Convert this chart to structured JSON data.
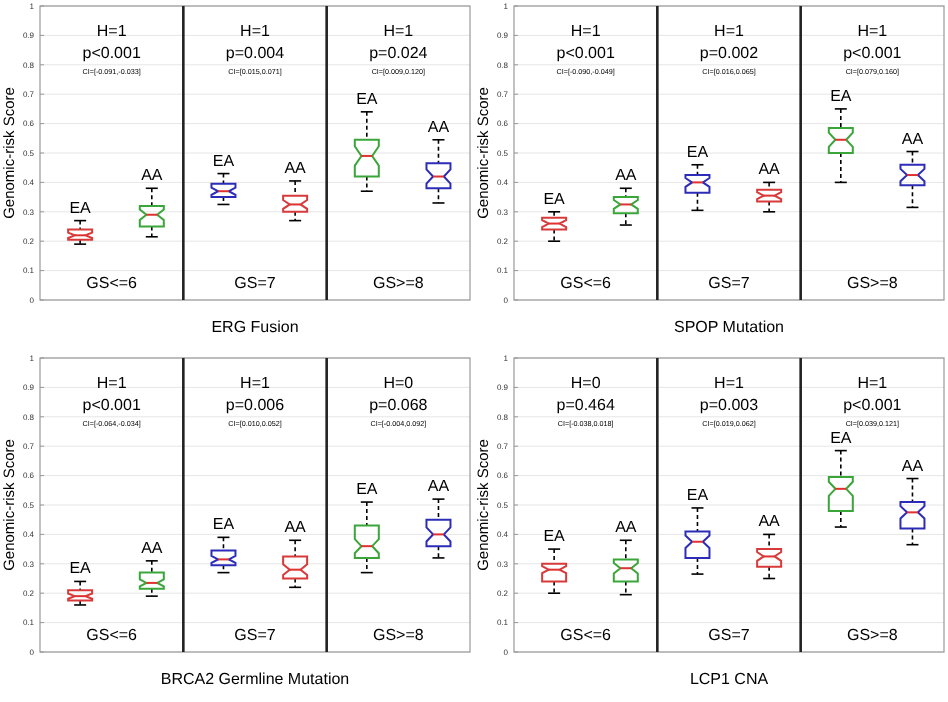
{
  "chart_data": [
    {
      "type": "box",
      "xlabel": "ERG Fusion",
      "ylabel": "Genomic-risk Score",
      "categories": [
        "EA",
        "AA",
        "EA",
        "AA",
        "EA",
        "AA"
      ],
      "colors": [
        "#d83a3a",
        "#3aa63a",
        "#2c2cb8",
        "#d83a3a",
        "#3aa63a",
        "#2c2cb8"
      ],
      "ylim": [
        0,
        1
      ],
      "yticks": [
        0,
        0.1,
        0.2,
        0.3,
        0.4,
        0.5,
        0.6,
        0.7,
        0.8,
        0.9,
        1
      ],
      "grid": "y",
      "boxes": [
        {
          "low": 0.19,
          "q1": 0.205,
          "median": 0.22,
          "q3": 0.24,
          "high": 0.27
        },
        {
          "low": 0.215,
          "q1": 0.25,
          "median": 0.29,
          "q3": 0.32,
          "high": 0.38
        },
        {
          "low": 0.325,
          "q1": 0.35,
          "median": 0.37,
          "q3": 0.395,
          "high": 0.43
        },
        {
          "low": 0.27,
          "q1": 0.3,
          "median": 0.325,
          "q3": 0.355,
          "high": 0.405
        },
        {
          "low": 0.37,
          "q1": 0.42,
          "median": 0.49,
          "q3": 0.545,
          "high": 0.64
        },
        {
          "low": 0.33,
          "q1": 0.38,
          "median": 0.42,
          "q3": 0.465,
          "high": 0.545
        }
      ],
      "annotations": [
        "H=1",
        "p<0.001",
        "CI=[-0.091,-0.033]",
        "GS<=6",
        "H=1",
        "p=0.004",
        "CI=[0.015,0.071]",
        "GS=7",
        "H=1",
        "p=0.024",
        "CI=[0.009,0.120]",
        "GS>=8"
      ]
    },
    {
      "type": "box",
      "xlabel": "SPOP Mutation",
      "ylabel": "Genomic-risk Score",
      "categories": [
        "EA",
        "AA",
        "EA",
        "AA",
        "EA",
        "AA"
      ],
      "colors": [
        "#d83a3a",
        "#3aa63a",
        "#2c2cb8",
        "#d83a3a",
        "#3aa63a",
        "#2c2cb8"
      ],
      "ylim": [
        0,
        1
      ],
      "yticks": [
        0,
        0.1,
        0.2,
        0.3,
        0.4,
        0.5,
        0.6,
        0.7,
        0.8,
        0.9,
        1
      ],
      "grid": "y",
      "boxes": [
        {
          "low": 0.2,
          "q1": 0.24,
          "median": 0.26,
          "q3": 0.28,
          "high": 0.3
        },
        {
          "low": 0.255,
          "q1": 0.295,
          "median": 0.325,
          "q3": 0.35,
          "high": 0.38
        },
        {
          "low": 0.305,
          "q1": 0.365,
          "median": 0.4,
          "q3": 0.425,
          "high": 0.46
        },
        {
          "low": 0.3,
          "q1": 0.335,
          "median": 0.355,
          "q3": 0.375,
          "high": 0.4
        },
        {
          "low": 0.4,
          "q1": 0.5,
          "median": 0.545,
          "q3": 0.585,
          "high": 0.65
        },
        {
          "low": 0.315,
          "q1": 0.39,
          "median": 0.425,
          "q3": 0.46,
          "high": 0.505
        }
      ],
      "annotations": [
        "H=1",
        "p<0.001",
        "CI=[-0.090,-0.049]",
        "GS<=6",
        "H=1",
        "p=0.002",
        "CI=[0.016,0.065]",
        "GS=7",
        "H=1",
        "p<0.001",
        "CI=[0.079,0.160]",
        "GS>=8"
      ]
    },
    {
      "type": "box",
      "xlabel": "BRCA2 Germline Mutation",
      "ylabel": "Genomic-risk Score",
      "categories": [
        "EA",
        "AA",
        "EA",
        "AA",
        "EA",
        "AA"
      ],
      "colors": [
        "#d83a3a",
        "#3aa63a",
        "#2c2cb8",
        "#d83a3a",
        "#3aa63a",
        "#2c2cb8"
      ],
      "ylim": [
        0,
        1
      ],
      "yticks": [
        0,
        0.1,
        0.2,
        0.3,
        0.4,
        0.5,
        0.6,
        0.7,
        0.8,
        0.9,
        1
      ],
      "grid": "y",
      "boxes": [
        {
          "low": 0.16,
          "q1": 0.175,
          "median": 0.19,
          "q3": 0.21,
          "high": 0.24
        },
        {
          "low": 0.19,
          "q1": 0.215,
          "median": 0.235,
          "q3": 0.27,
          "high": 0.31
        },
        {
          "low": 0.27,
          "q1": 0.295,
          "median": 0.315,
          "q3": 0.345,
          "high": 0.39
        },
        {
          "low": 0.22,
          "q1": 0.25,
          "median": 0.28,
          "q3": 0.325,
          "high": 0.38
        },
        {
          "low": 0.27,
          "q1": 0.32,
          "median": 0.36,
          "q3": 0.43,
          "high": 0.51
        },
        {
          "low": 0.32,
          "q1": 0.36,
          "median": 0.4,
          "q3": 0.45,
          "high": 0.52
        }
      ],
      "annotations": [
        "H=1",
        "p<0.001",
        "CI=[-0.064,-0.034]",
        "GS<=6",
        "H=1",
        "p=0.006",
        "CI=[0.010,0.052]",
        "GS=7",
        "H=0",
        "p=0.068",
        "CI=[-0.004,0.092]",
        "GS>=8"
      ]
    },
    {
      "type": "box",
      "xlabel": "LCP1 CNA",
      "ylabel": "Genomic-risk Score",
      "categories": [
        "EA",
        "AA",
        "EA",
        "AA",
        "EA",
        "AA"
      ],
      "colors": [
        "#d83a3a",
        "#3aa63a",
        "#2c2cb8",
        "#d83a3a",
        "#3aa63a",
        "#2c2cb8"
      ],
      "ylim": [
        0,
        1
      ],
      "yticks": [
        0,
        0.1,
        0.2,
        0.3,
        0.4,
        0.5,
        0.6,
        0.7,
        0.8,
        0.9,
        1
      ],
      "grid": "y",
      "boxes": [
        {
          "low": 0.2,
          "q1": 0.24,
          "median": 0.28,
          "q3": 0.3,
          "high": 0.35
        },
        {
          "low": 0.195,
          "q1": 0.24,
          "median": 0.285,
          "q3": 0.315,
          "high": 0.38
        },
        {
          "low": 0.265,
          "q1": 0.32,
          "median": 0.375,
          "q3": 0.41,
          "high": 0.49
        },
        {
          "low": 0.25,
          "q1": 0.29,
          "median": 0.325,
          "q3": 0.35,
          "high": 0.4
        },
        {
          "low": 0.425,
          "q1": 0.48,
          "median": 0.555,
          "q3": 0.595,
          "high": 0.685
        },
        {
          "low": 0.365,
          "q1": 0.42,
          "median": 0.475,
          "q3": 0.51,
          "high": 0.59
        }
      ],
      "annotations": [
        "H=0",
        "p=0.464",
        "CI=[-0.038,0.018]",
        "GS<=6",
        "H=1",
        "p=0.003",
        "CI=[0.019,0.062]",
        "GS=7",
        "H=1",
        "p<0.001",
        "CI=[0.039,0.121]",
        "GS>=8"
      ]
    }
  ]
}
